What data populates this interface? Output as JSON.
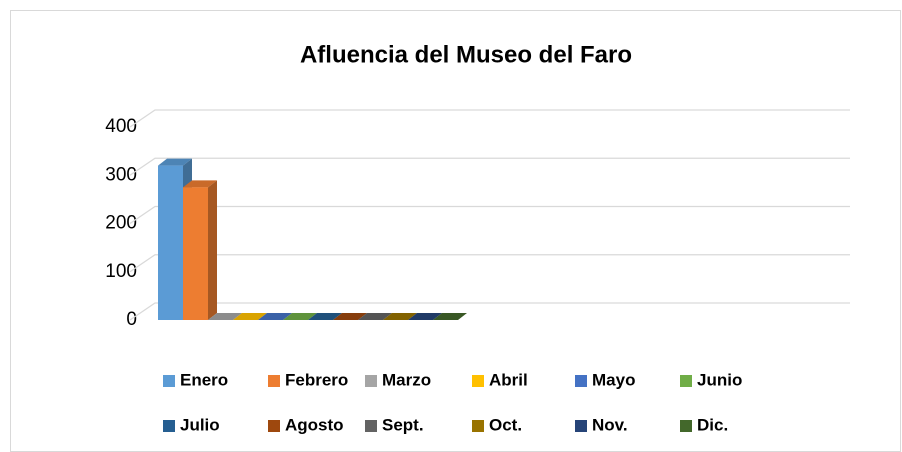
{
  "chart_data": {
    "type": "bar3d",
    "title": "Afluencia del Museo del Faro",
    "ylim": [
      0,
      400
    ],
    "yticks": [
      0,
      100,
      200,
      300,
      400
    ],
    "grid": true,
    "legend": "bottom",
    "series": [
      {
        "name": "Enero",
        "color": "#5b9bd5",
        "values": [
          320
        ]
      },
      {
        "name": "Febrero",
        "color": "#ed7d31",
        "values": [
          275
        ]
      },
      {
        "name": "Marzo",
        "color": "#a5a5a5",
        "values": [
          0
        ]
      },
      {
        "name": "Abril",
        "color": "#ffc000",
        "values": [
          0
        ]
      },
      {
        "name": "Mayo",
        "color": "#4472c4",
        "values": [
          0
        ]
      },
      {
        "name": "Junio",
        "color": "#70ad47",
        "values": [
          0
        ]
      },
      {
        "name": "Julio",
        "color": "#255e91",
        "values": [
          0
        ]
      },
      {
        "name": "Agosto",
        "color": "#9e480e",
        "values": [
          0
        ]
      },
      {
        "name": "Sept.",
        "color": "#636363",
        "values": [
          0
        ]
      },
      {
        "name": "Oct.",
        "color": "#997300",
        "values": [
          0
        ]
      },
      {
        "name": "Nov.",
        "color": "#264478",
        "values": [
          0
        ]
      },
      {
        "name": "Dic.",
        "color": "#43682b",
        "values": [
          0
        ]
      }
    ]
  }
}
